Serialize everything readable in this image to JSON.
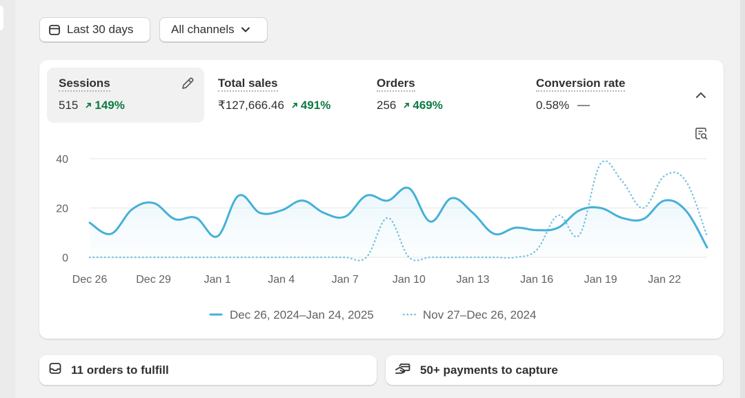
{
  "filters": {
    "date_label": "Last 30 days",
    "channel_label": "All channels"
  },
  "metrics": [
    {
      "label": "Sessions",
      "value": "515",
      "change": "149%"
    },
    {
      "label": "Total sales",
      "value": "₹127,666.46",
      "change": "491%"
    },
    {
      "label": "Orders",
      "value": "256",
      "change": "469%"
    },
    {
      "label": "Conversion rate",
      "value": "0.58%",
      "change": ""
    }
  ],
  "chart_data": {
    "type": "line",
    "x_tick_labels": [
      "Dec 26",
      "Dec 29",
      "Jan 1",
      "Jan 4",
      "Jan 7",
      "Jan 10",
      "Jan 13",
      "Jan 16",
      "Jan 19",
      "Jan 22"
    ],
    "y_tick_labels": [
      "40",
      "20",
      "0"
    ],
    "ylim": [
      0,
      40
    ],
    "grid": true,
    "legend_position": "bottom",
    "series": [
      {
        "name": "Dec 26, 2024–Jan 24, 2025",
        "style": "solid",
        "color": "#45b0d8",
        "values": [
          14,
          9.5,
          19.5,
          22,
          15.5,
          16,
          8.5,
          25,
          18,
          19,
          23,
          18,
          16.5,
          25,
          23,
          28,
          14.5,
          24,
          18,
          9.5,
          12,
          11,
          12,
          19,
          20,
          16,
          15.5,
          23,
          19,
          4
        ]
      },
      {
        "name": "Nov 27–Dec 26, 2024",
        "style": "dotted",
        "color": "#7cc4e0",
        "values": [
          0,
          0,
          0,
          0,
          0,
          0,
          0,
          0,
          0,
          0,
          0,
          0,
          0,
          0,
          16,
          0,
          0,
          0,
          0,
          0,
          0,
          3,
          17,
          9,
          38,
          31,
          20,
          33,
          31,
          8.5
        ]
      }
    ]
  },
  "cards": {
    "fulfill_label": "11 orders to fulfill",
    "payments_label": "50+ payments to capture"
  },
  "icons": {
    "date": "calendar-icon",
    "channel_caret": "chevron-down-icon",
    "edit": "pencil-icon",
    "collapse": "chevron-up-icon",
    "chart_search": "chart-search-icon",
    "inbox": "inbox-icon",
    "payment": "hand-card-icon"
  }
}
